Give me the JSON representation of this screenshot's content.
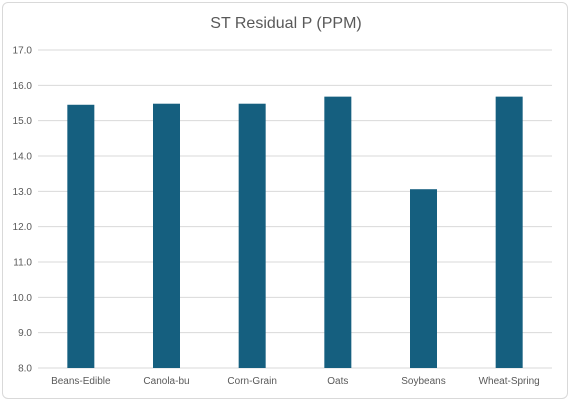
{
  "chart_data": {
    "type": "bar",
    "title": "ST Residual P (PPM)",
    "categories": [
      "Beans-Edible",
      "Canola-bu",
      "Corn-Grain",
      "Oats",
      "Soybeans",
      "Wheat-Spring"
    ],
    "values": [
      15.45,
      15.48,
      15.48,
      15.68,
      13.06,
      15.68
    ],
    "ylim": [
      8.0,
      17.0
    ],
    "yticks": [
      "8.0",
      "9.0",
      "10.0",
      "11.0",
      "12.0",
      "13.0",
      "14.0",
      "15.0",
      "16.0",
      "17.0"
    ],
    "grid": true,
    "legend": "none",
    "colors": {
      "bar": "#155f7f",
      "grid": "#d9d9d9",
      "text": "#595959"
    }
  }
}
